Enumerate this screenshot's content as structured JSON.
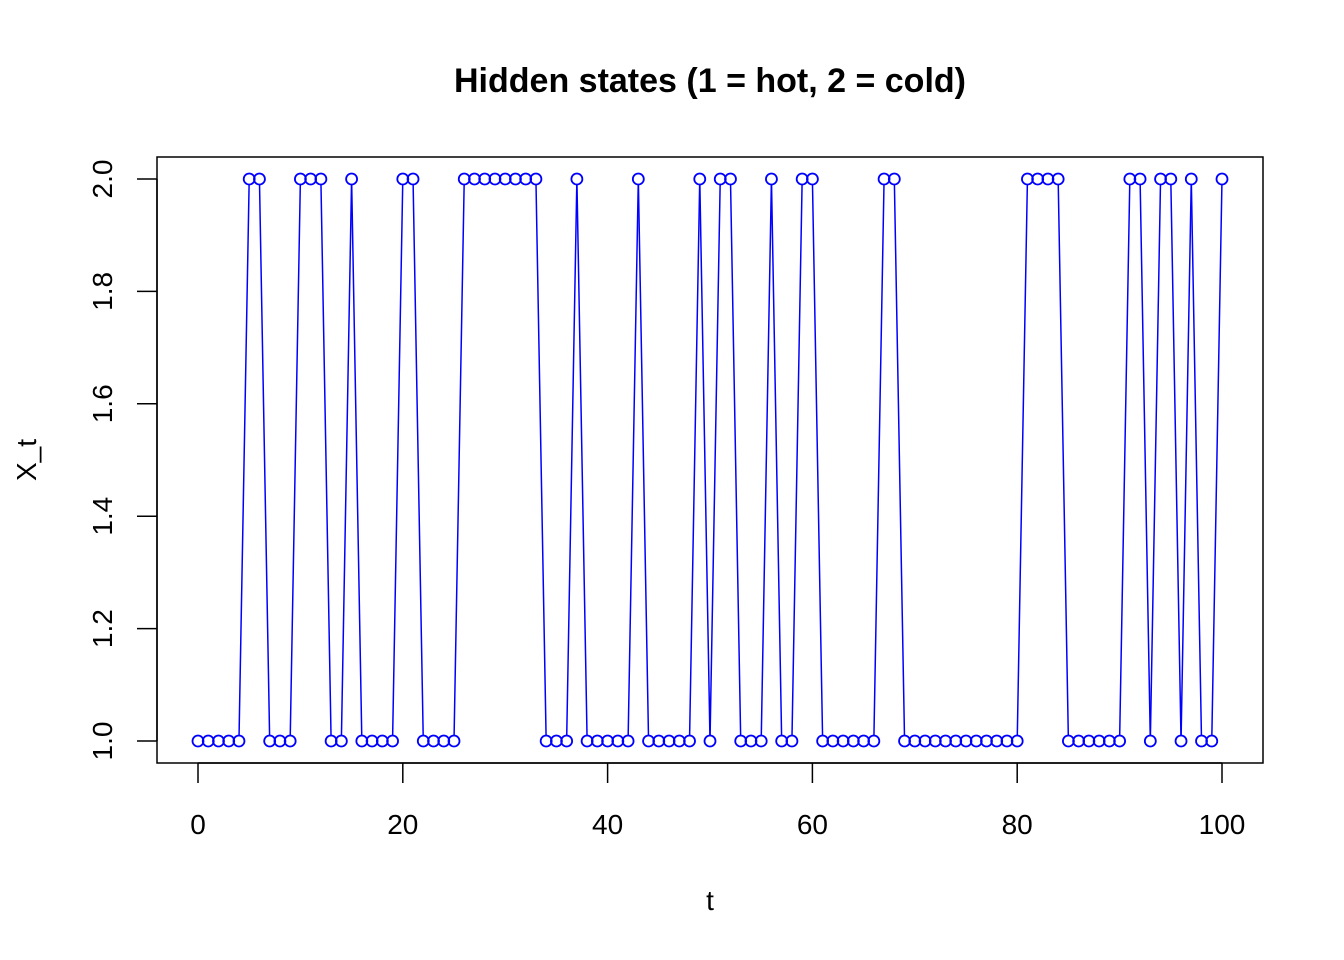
{
  "chart_data": {
    "type": "line",
    "title": "Hidden states (1 = hot, 2 = cold)",
    "xlabel": "t",
    "ylabel": "X_t",
    "xlim": [
      0,
      100
    ],
    "ylim": [
      1,
      2
    ],
    "xticks": [
      0,
      20,
      40,
      60,
      80,
      100
    ],
    "xtick_labels": [
      "0",
      "20",
      "40",
      "60",
      "80",
      "100"
    ],
    "yticks": [
      1.0,
      1.2,
      1.4,
      1.6,
      1.8,
      2.0
    ],
    "ytick_labels": [
      "1.0",
      "1.2",
      "1.4",
      "1.6",
      "1.8",
      "2.0"
    ],
    "grid": false,
    "marker": "open-circle",
    "color": "#0000ff",
    "x_start": 0,
    "values": [
      1,
      1,
      1,
      1,
      1,
      2,
      2,
      1,
      1,
      1,
      2,
      2,
      2,
      1,
      1,
      2,
      1,
      1,
      1,
      1,
      2,
      2,
      1,
      1,
      1,
      1,
      2,
      2,
      2,
      2,
      2,
      2,
      2,
      2,
      1,
      1,
      1,
      2,
      1,
      1,
      1,
      1,
      1,
      2,
      1,
      1,
      1,
      1,
      1,
      2,
      1,
      2,
      2,
      1,
      1,
      1,
      2,
      1,
      1,
      2,
      2,
      1,
      1,
      1,
      1,
      1,
      1,
      2,
      2,
      1,
      1,
      1,
      1,
      1,
      1,
      1,
      1,
      1,
      1,
      1,
      1,
      2,
      2,
      2,
      2,
      1,
      1,
      1,
      1,
      1,
      1,
      2,
      2,
      1,
      2,
      2,
      1,
      2,
      1,
      1,
      2
    ]
  }
}
